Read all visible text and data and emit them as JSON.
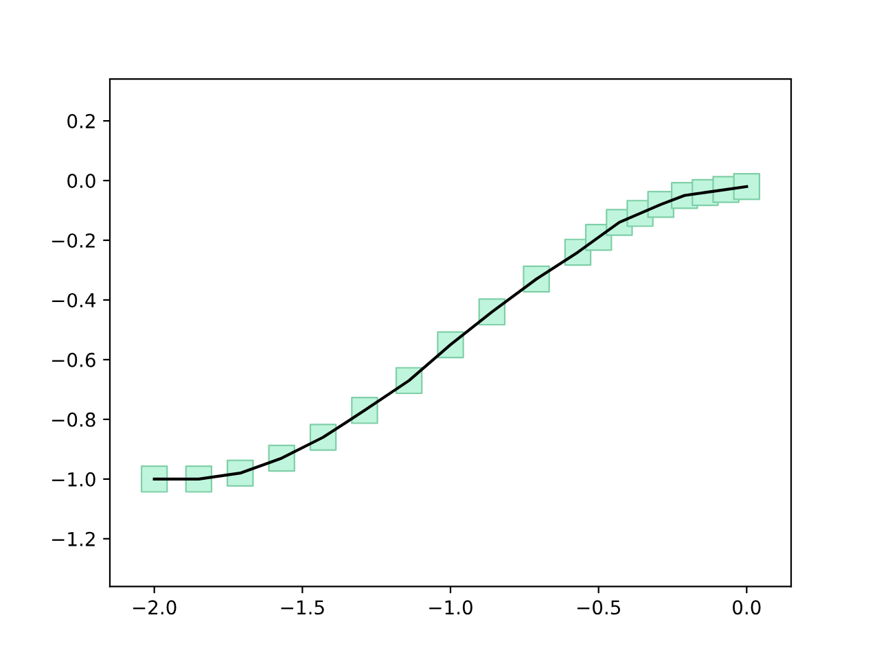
{
  "chart_data": {
    "type": "line",
    "x": [
      -2.0,
      -1.85,
      -1.71,
      -1.57,
      -1.43,
      -1.29,
      -1.14,
      -1.0,
      -0.86,
      -0.71,
      -0.57,
      -0.5,
      -0.43,
      -0.36,
      -0.29,
      -0.21,
      -0.14,
      -0.07,
      0.0
    ],
    "series": [
      {
        "type": "scatter",
        "marker": "square",
        "color": "#bff5dc",
        "values": [
          -1.0,
          -1.0,
          -0.98,
          -0.93,
          -0.86,
          -0.77,
          -0.67,
          -0.55,
          -0.44,
          -0.33,
          -0.24,
          -0.19,
          -0.14,
          -0.11,
          -0.08,
          -0.05,
          -0.04,
          -0.03,
          -0.02
        ]
      },
      {
        "marker": "none",
        "color": "#000000",
        "values": [
          -1.0,
          -1.0,
          -0.98,
          -0.93,
          -0.86,
          -0.77,
          -0.67,
          -0.55,
          -0.44,
          -0.33,
          -0.24,
          -0.19,
          -0.14,
          -0.11,
          -0.08,
          -0.05,
          -0.04,
          -0.03,
          -0.02
        ]
      }
    ],
    "xlim": [
      -2.15,
      0.15
    ],
    "ylim": [
      -1.36,
      0.34
    ],
    "xticks": [
      {
        "value": -2.0,
        "label": "−2.0"
      },
      {
        "value": -1.5,
        "label": "−1.5"
      },
      {
        "value": -1.0,
        "label": "−1.0"
      },
      {
        "value": -0.5,
        "label": "−0.5"
      },
      {
        "value": 0.0,
        "label": "0.0"
      }
    ],
    "yticks": [
      {
        "value": -1.2,
        "label": "−1.2"
      },
      {
        "value": -1.0,
        "label": "−1.0"
      },
      {
        "value": -0.8,
        "label": "−0.8"
      },
      {
        "value": -0.6,
        "label": "−0.6"
      },
      {
        "value": -0.4,
        "label": "−0.4"
      },
      {
        "value": -0.2,
        "label": "−0.2"
      },
      {
        "value": 0.0,
        "label": "0.0"
      },
      {
        "value": 0.2,
        "label": "0.2"
      }
    ],
    "grid": false,
    "legend": false
  }
}
